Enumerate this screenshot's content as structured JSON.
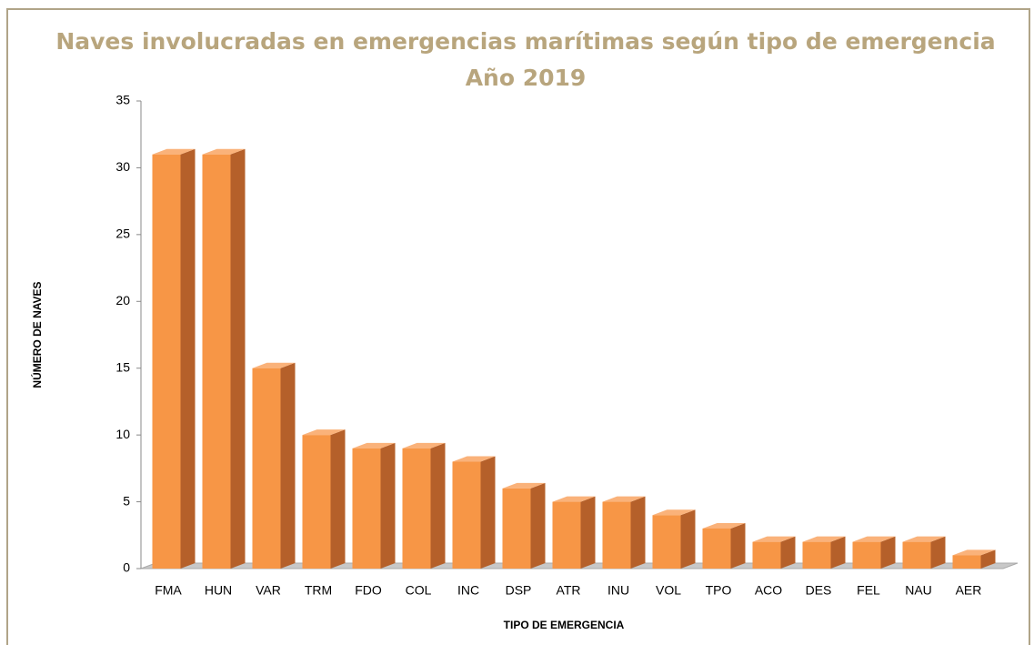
{
  "chart_data": {
    "type": "bar3d",
    "title": "Naves involucradas en emergencias marítimas según tipo de emergencia",
    "subtitle": "Año 2019",
    "x_label": "TIPO DE EMERGENCIA",
    "y_label": "NÚMERO DE NAVES",
    "categories": [
      "FMA",
      "HUN",
      "VAR",
      "TRM",
      "FDO",
      "COL",
      "INC",
      "DSP",
      "ATR",
      "INU",
      "VOL",
      "TPO",
      "ACO",
      "DES",
      "FEL",
      "NAU",
      "AER"
    ],
    "values": [
      31,
      31,
      15,
      10,
      9,
      9,
      8,
      6,
      5,
      5,
      4,
      3,
      2,
      2,
      2,
      2,
      1
    ],
    "color": "#f79646",
    "ylim": [
      0,
      35
    ],
    "yticks": [
      0,
      5,
      10,
      15,
      20,
      25,
      30,
      35
    ],
    "grid": false
  }
}
